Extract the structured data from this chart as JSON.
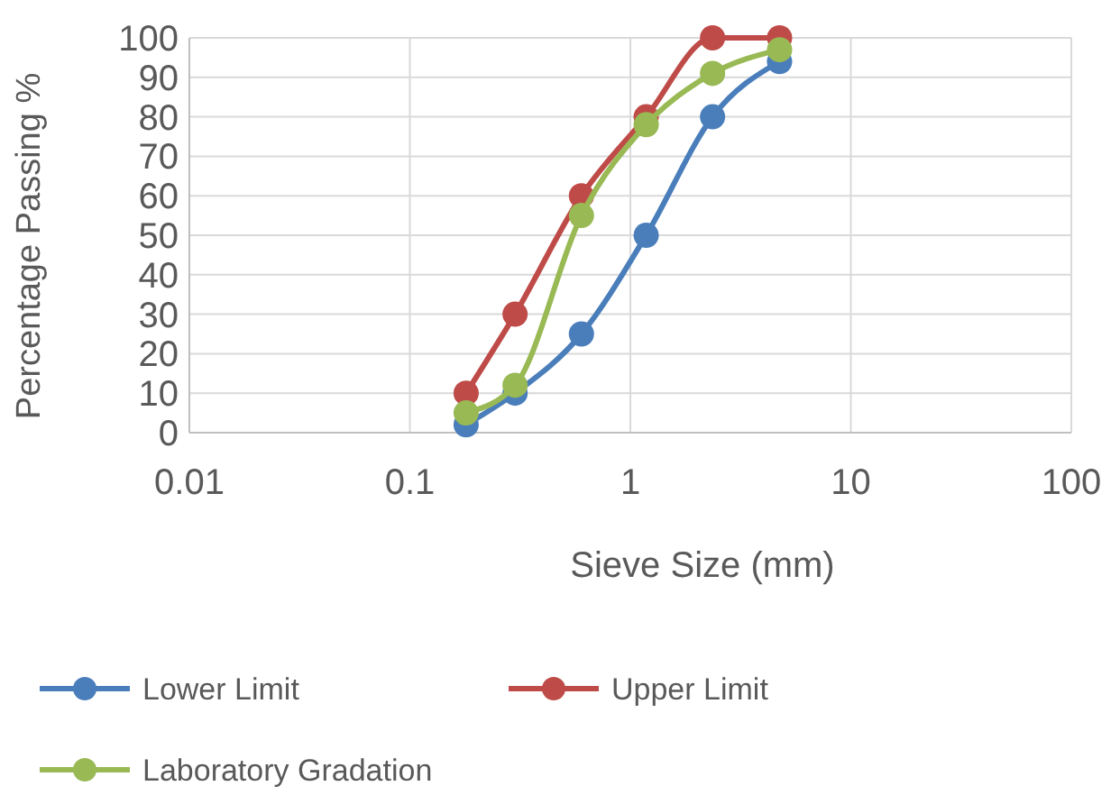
{
  "chart_data": {
    "type": "line",
    "xlabel": "Sieve Size (mm)",
    "ylabel": "Percentage Passing %",
    "log": "x",
    "xlim": [
      0.01,
      100
    ],
    "xticks": [
      0.01,
      0.1,
      1,
      10,
      100
    ],
    "ylim": [
      0,
      100
    ],
    "yticks": [
      0,
      10,
      20,
      30,
      40,
      50,
      60,
      70,
      80,
      90,
      100
    ],
    "grid": true,
    "legend": "bottom",
    "marker": "circle",
    "line_style": "solid",
    "x": [
      0.18,
      0.3,
      0.6,
      1.18,
      2.36,
      4.75
    ],
    "series": [
      {
        "name": "Lower Limit",
        "color": "#4a7ebb",
        "values": [
          2,
          10,
          25,
          50,
          80,
          94
        ]
      },
      {
        "name": "Upper Limit",
        "color": "#be4b48",
        "values": [
          10,
          30,
          60,
          80,
          100,
          100
        ]
      },
      {
        "name": "Laboratory Gradation",
        "color": "#98b954",
        "values": [
          5,
          12,
          55,
          78,
          91,
          97
        ]
      }
    ]
  }
}
